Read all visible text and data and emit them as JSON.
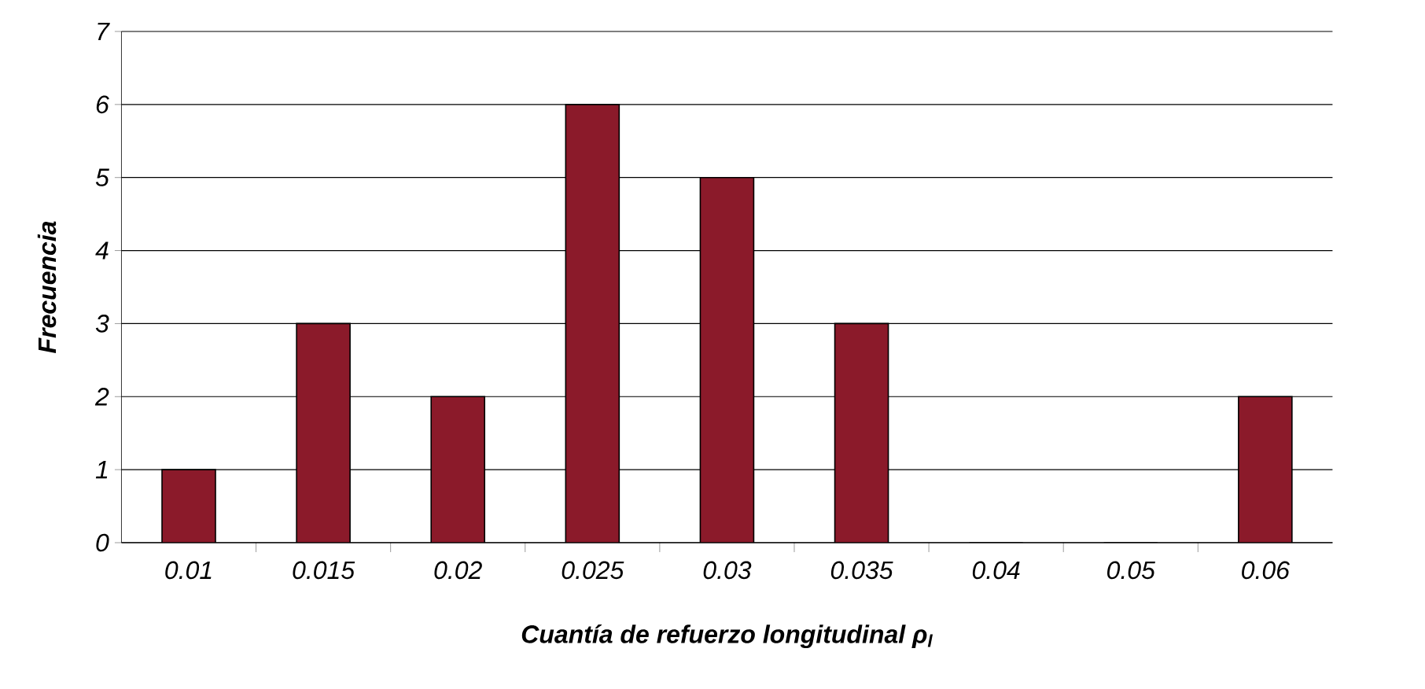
{
  "chart_data": {
    "type": "bar",
    "xlabel": "Cuantía de refuerzo longitudinal ρ$_{l}$",
    "ylabel": "Frecuencia",
    "categories": [
      "0.01",
      "0.015",
      "0.02",
      "0.025",
      "0.03",
      "0.035",
      "0.04",
      "0.05",
      "0.06"
    ],
    "values": [
      1,
      3,
      2,
      6,
      5,
      3,
      0,
      0,
      2
    ],
    "color": "#8b1a2a",
    "ylim": [
      0,
      7
    ],
    "yticks": [
      0,
      1,
      2,
      3,
      4,
      5,
      6,
      7
    ],
    "grid": "y"
  }
}
